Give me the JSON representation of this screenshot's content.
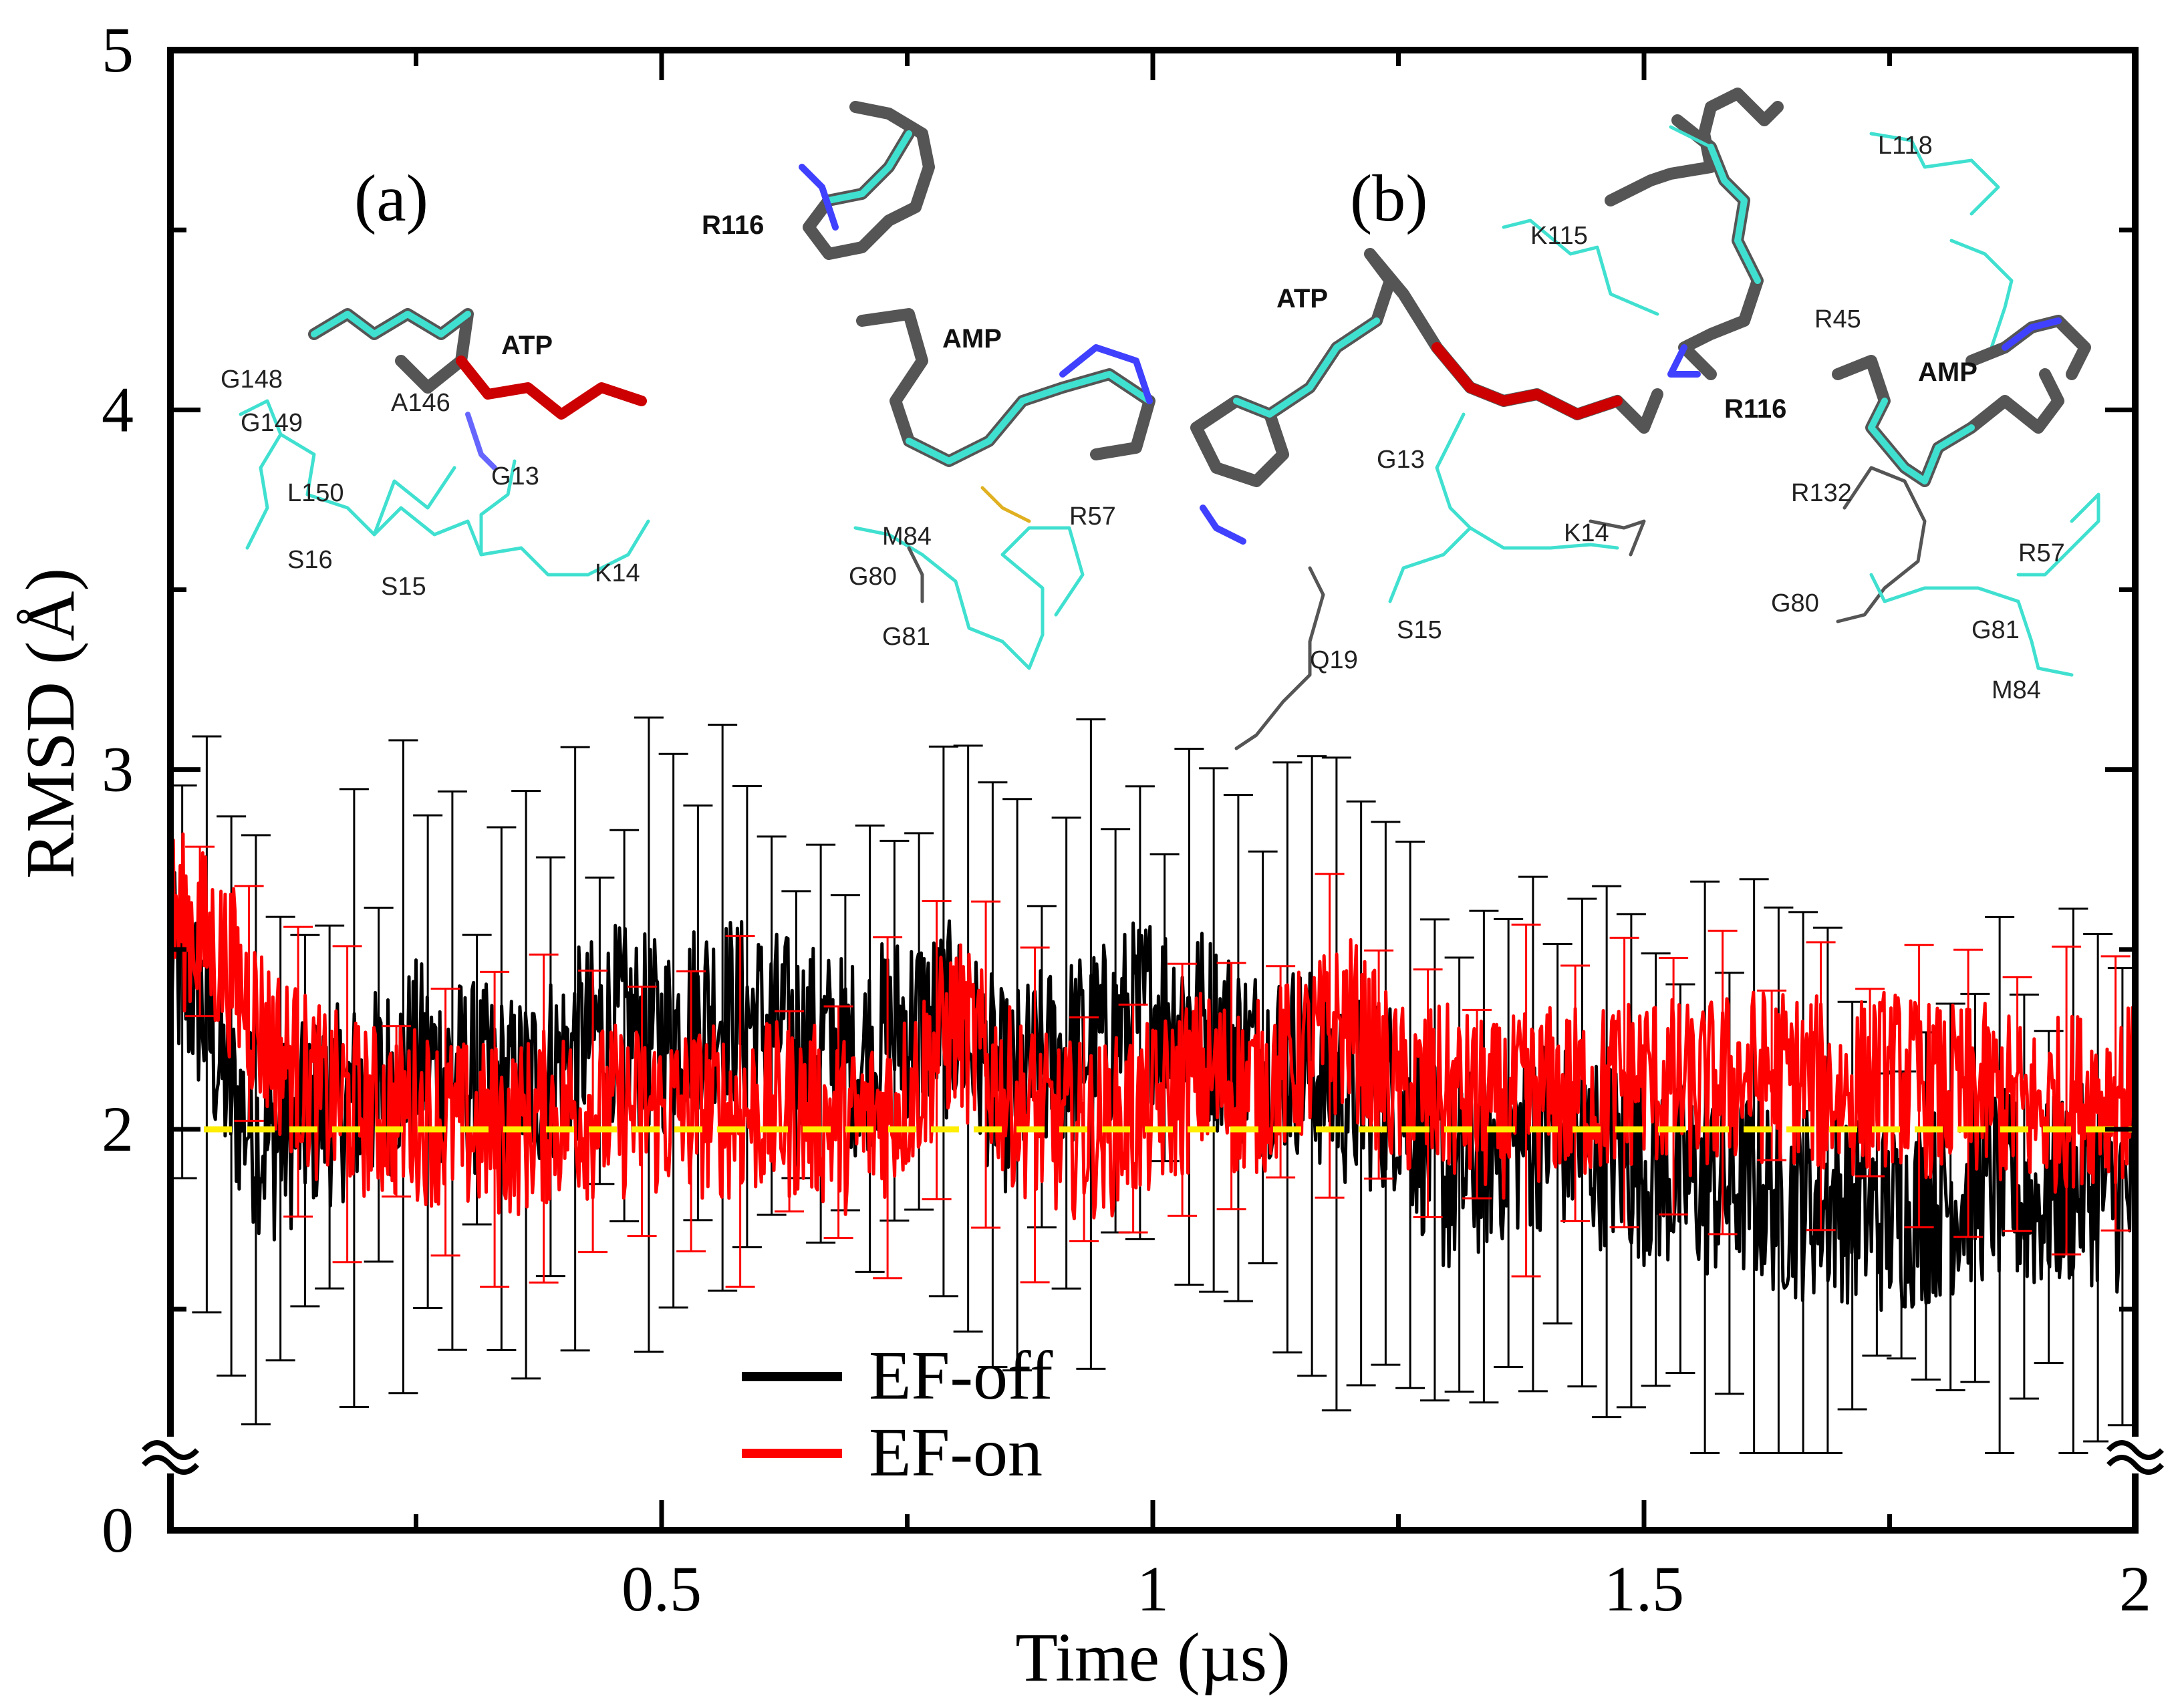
{
  "chart_data": {
    "type": "line",
    "title": "",
    "xlabel": "Time (µs)",
    "ylabel": "RMSD (Å)",
    "xlim": [
      0,
      2
    ],
    "ylim": [
      0,
      5
    ],
    "y_axis_break": "between 0 and ~1.3",
    "x_ticks": [
      0.5,
      1,
      1.5,
      2
    ],
    "x_tick_labels": [
      "0.5",
      "1",
      "1.5",
      "2"
    ],
    "y_ticks": [
      0,
      2,
      3,
      4,
      5
    ],
    "y_tick_labels": [
      "0",
      "2",
      "3",
      "4",
      "5"
    ],
    "reference_line": {
      "y": 2.0,
      "style": "dashed",
      "color": "#ffee00"
    },
    "legend_position": "bottom-center",
    "series": [
      {
        "name": "EF-off",
        "color": "#000000",
        "t": [
          0.0,
          0.03,
          0.06,
          0.1,
          0.15,
          0.2,
          0.25,
          0.3,
          0.35,
          0.4,
          0.45,
          0.5,
          0.55,
          0.6,
          0.65,
          0.7,
          0.75,
          0.8,
          0.85,
          0.9,
          0.95,
          1.0,
          1.05,
          1.1,
          1.15,
          1.2,
          1.25,
          1.3,
          1.35,
          1.4,
          1.45,
          1.5,
          1.55,
          1.6,
          1.65,
          1.7,
          1.75,
          1.8,
          1.85,
          1.9,
          1.95,
          2.0
        ],
        "rmsd": [
          2.45,
          2.35,
          2.1,
          1.95,
          2.05,
          2.1,
          2.2,
          2.15,
          2.1,
          2.2,
          2.3,
          2.25,
          2.35,
          2.3,
          2.25,
          2.2,
          2.3,
          2.3,
          2.1,
          2.2,
          2.25,
          2.35,
          2.3,
          2.2,
          2.2,
          2.1,
          2.1,
          1.85,
          1.95,
          2.0,
          1.95,
          1.9,
          1.85,
          1.85,
          1.8,
          1.8,
          1.75,
          1.8,
          1.85,
          1.8,
          1.85,
          1.8
        ]
      },
      {
        "name": "EF-on",
        "color": "#ff0000",
        "t": [
          0.0,
          0.03,
          0.06,
          0.1,
          0.15,
          0.2,
          0.25,
          0.3,
          0.35,
          0.4,
          0.45,
          0.5,
          0.55,
          0.6,
          0.65,
          0.7,
          0.75,
          0.8,
          0.85,
          0.9,
          0.95,
          1.0,
          1.05,
          1.1,
          1.15,
          1.2,
          1.25,
          1.3,
          1.35,
          1.4,
          1.45,
          1.5,
          1.55,
          1.6,
          1.65,
          1.7,
          1.75,
          1.8,
          1.85,
          1.9,
          1.95,
          2.0
        ],
        "rmsd": [
          2.6,
          2.55,
          2.45,
          2.25,
          2.1,
          2.05,
          2.05,
          2.0,
          2.0,
          2.05,
          2.05,
          2.05,
          2.05,
          2.05,
          2.05,
          2.0,
          2.1,
          2.3,
          2.1,
          2.0,
          2.0,
          2.05,
          2.15,
          2.1,
          2.2,
          2.3,
          2.1,
          2.1,
          2.05,
          2.1,
          2.1,
          2.15,
          2.1,
          2.15,
          2.15,
          2.1,
          2.15,
          2.1,
          2.1,
          2.05,
          2.1,
          2.1
        ]
      }
    ]
  },
  "inset_panels": {
    "panel_a": {
      "label": "(a)",
      "ligands": [
        "ATP",
        "AMP",
        "R116"
      ],
      "residues": [
        "G148",
        "G149",
        "A146",
        "L150",
        "G13",
        "S16",
        "S15",
        "K14",
        "M84",
        "R57",
        "G80",
        "G81"
      ]
    },
    "panel_b": {
      "label": "(b)",
      "ligands": [
        "ATP",
        "R116",
        "AMP"
      ],
      "residues": [
        "G13",
        "K14",
        "S15",
        "Q19",
        "K115",
        "L118",
        "R45",
        "R132",
        "R57",
        "G80",
        "G81",
        "M84"
      ]
    }
  }
}
